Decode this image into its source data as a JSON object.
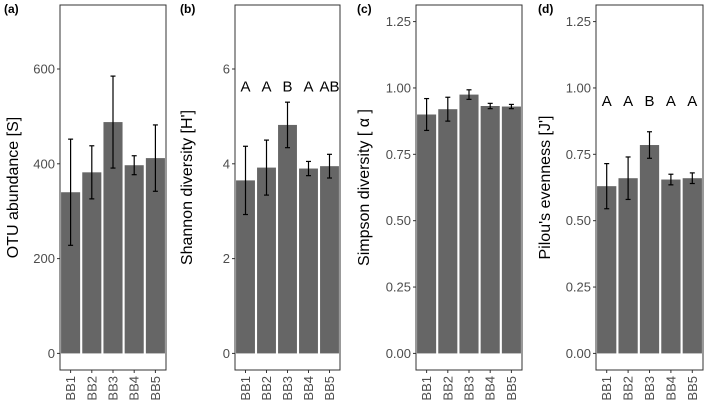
{
  "chart_data": [
    {
      "type": "bar",
      "panel_tag": "(a)",
      "categories": [
        "BB1",
        "BB2",
        "BB3",
        "BB4",
        "BB5"
      ],
      "values": [
        340,
        382,
        488,
        397,
        412
      ],
      "errors": [
        112,
        56,
        97,
        20,
        70
      ],
      "ylabel": "OTU abundance [S]",
      "ylim": [
        -35,
        735
      ],
      "yticks": [
        0,
        200,
        400,
        600
      ],
      "ytick_labels": [
        "0",
        "200",
        "400",
        "600"
      ],
      "letters": null
    },
    {
      "type": "bar",
      "panel_tag": "(b)",
      "categories": [
        "BB1",
        "BB2",
        "BB3",
        "BB4",
        "BB5"
      ],
      "values": [
        3.65,
        3.92,
        4.82,
        3.9,
        3.95
      ],
      "errors": [
        0.72,
        0.58,
        0.48,
        0.15,
        0.25
      ],
      "ylabel": "Shannon diversity [H']",
      "ylim": [
        -0.35,
        7.35
      ],
      "yticks": [
        0,
        2,
        4,
        6
      ],
      "ytick_labels": [
        "0",
        "2",
        "4",
        "6"
      ],
      "letters": [
        "A",
        "A",
        "B",
        "A",
        "AB"
      ],
      "letter_value": 5.65
    },
    {
      "type": "bar",
      "panel_tag": "(c)",
      "categories": [
        "BB1",
        "BB2",
        "BB3",
        "BB4",
        "BB5"
      ],
      "values": [
        0.9,
        0.92,
        0.975,
        0.932,
        0.93
      ],
      "errors": [
        0.06,
        0.045,
        0.018,
        0.01,
        0.008
      ],
      "ylabel": "Simpson diversity [ α ]",
      "ylim": [
        -0.0625,
        1.3125
      ],
      "yticks": [
        0,
        0.25,
        0.5,
        0.75,
        1.0,
        1.25
      ],
      "ytick_labels": [
        "0.00",
        "0.25",
        "0.50",
        "0.75",
        "1.00",
        "1.25"
      ],
      "letters": null
    },
    {
      "type": "bar",
      "panel_tag": "(d)",
      "categories": [
        "BB1",
        "BB2",
        "BB3",
        "BB4",
        "BB5"
      ],
      "values": [
        0.63,
        0.66,
        0.785,
        0.655,
        0.66
      ],
      "errors": [
        0.085,
        0.08,
        0.05,
        0.02,
        0.02
      ],
      "ylabel": "Pilou's evenness [J']",
      "ylim": [
        -0.0625,
        1.3125
      ],
      "yticks": [
        0,
        0.25,
        0.5,
        0.75,
        1.0,
        1.25
      ],
      "ytick_labels": [
        "0.00",
        "0.25",
        "0.50",
        "0.75",
        "1.00",
        "1.25"
      ],
      "letters": [
        "A",
        "A",
        "B",
        "A",
        "A"
      ],
      "letter_value": 0.955
    }
  ]
}
